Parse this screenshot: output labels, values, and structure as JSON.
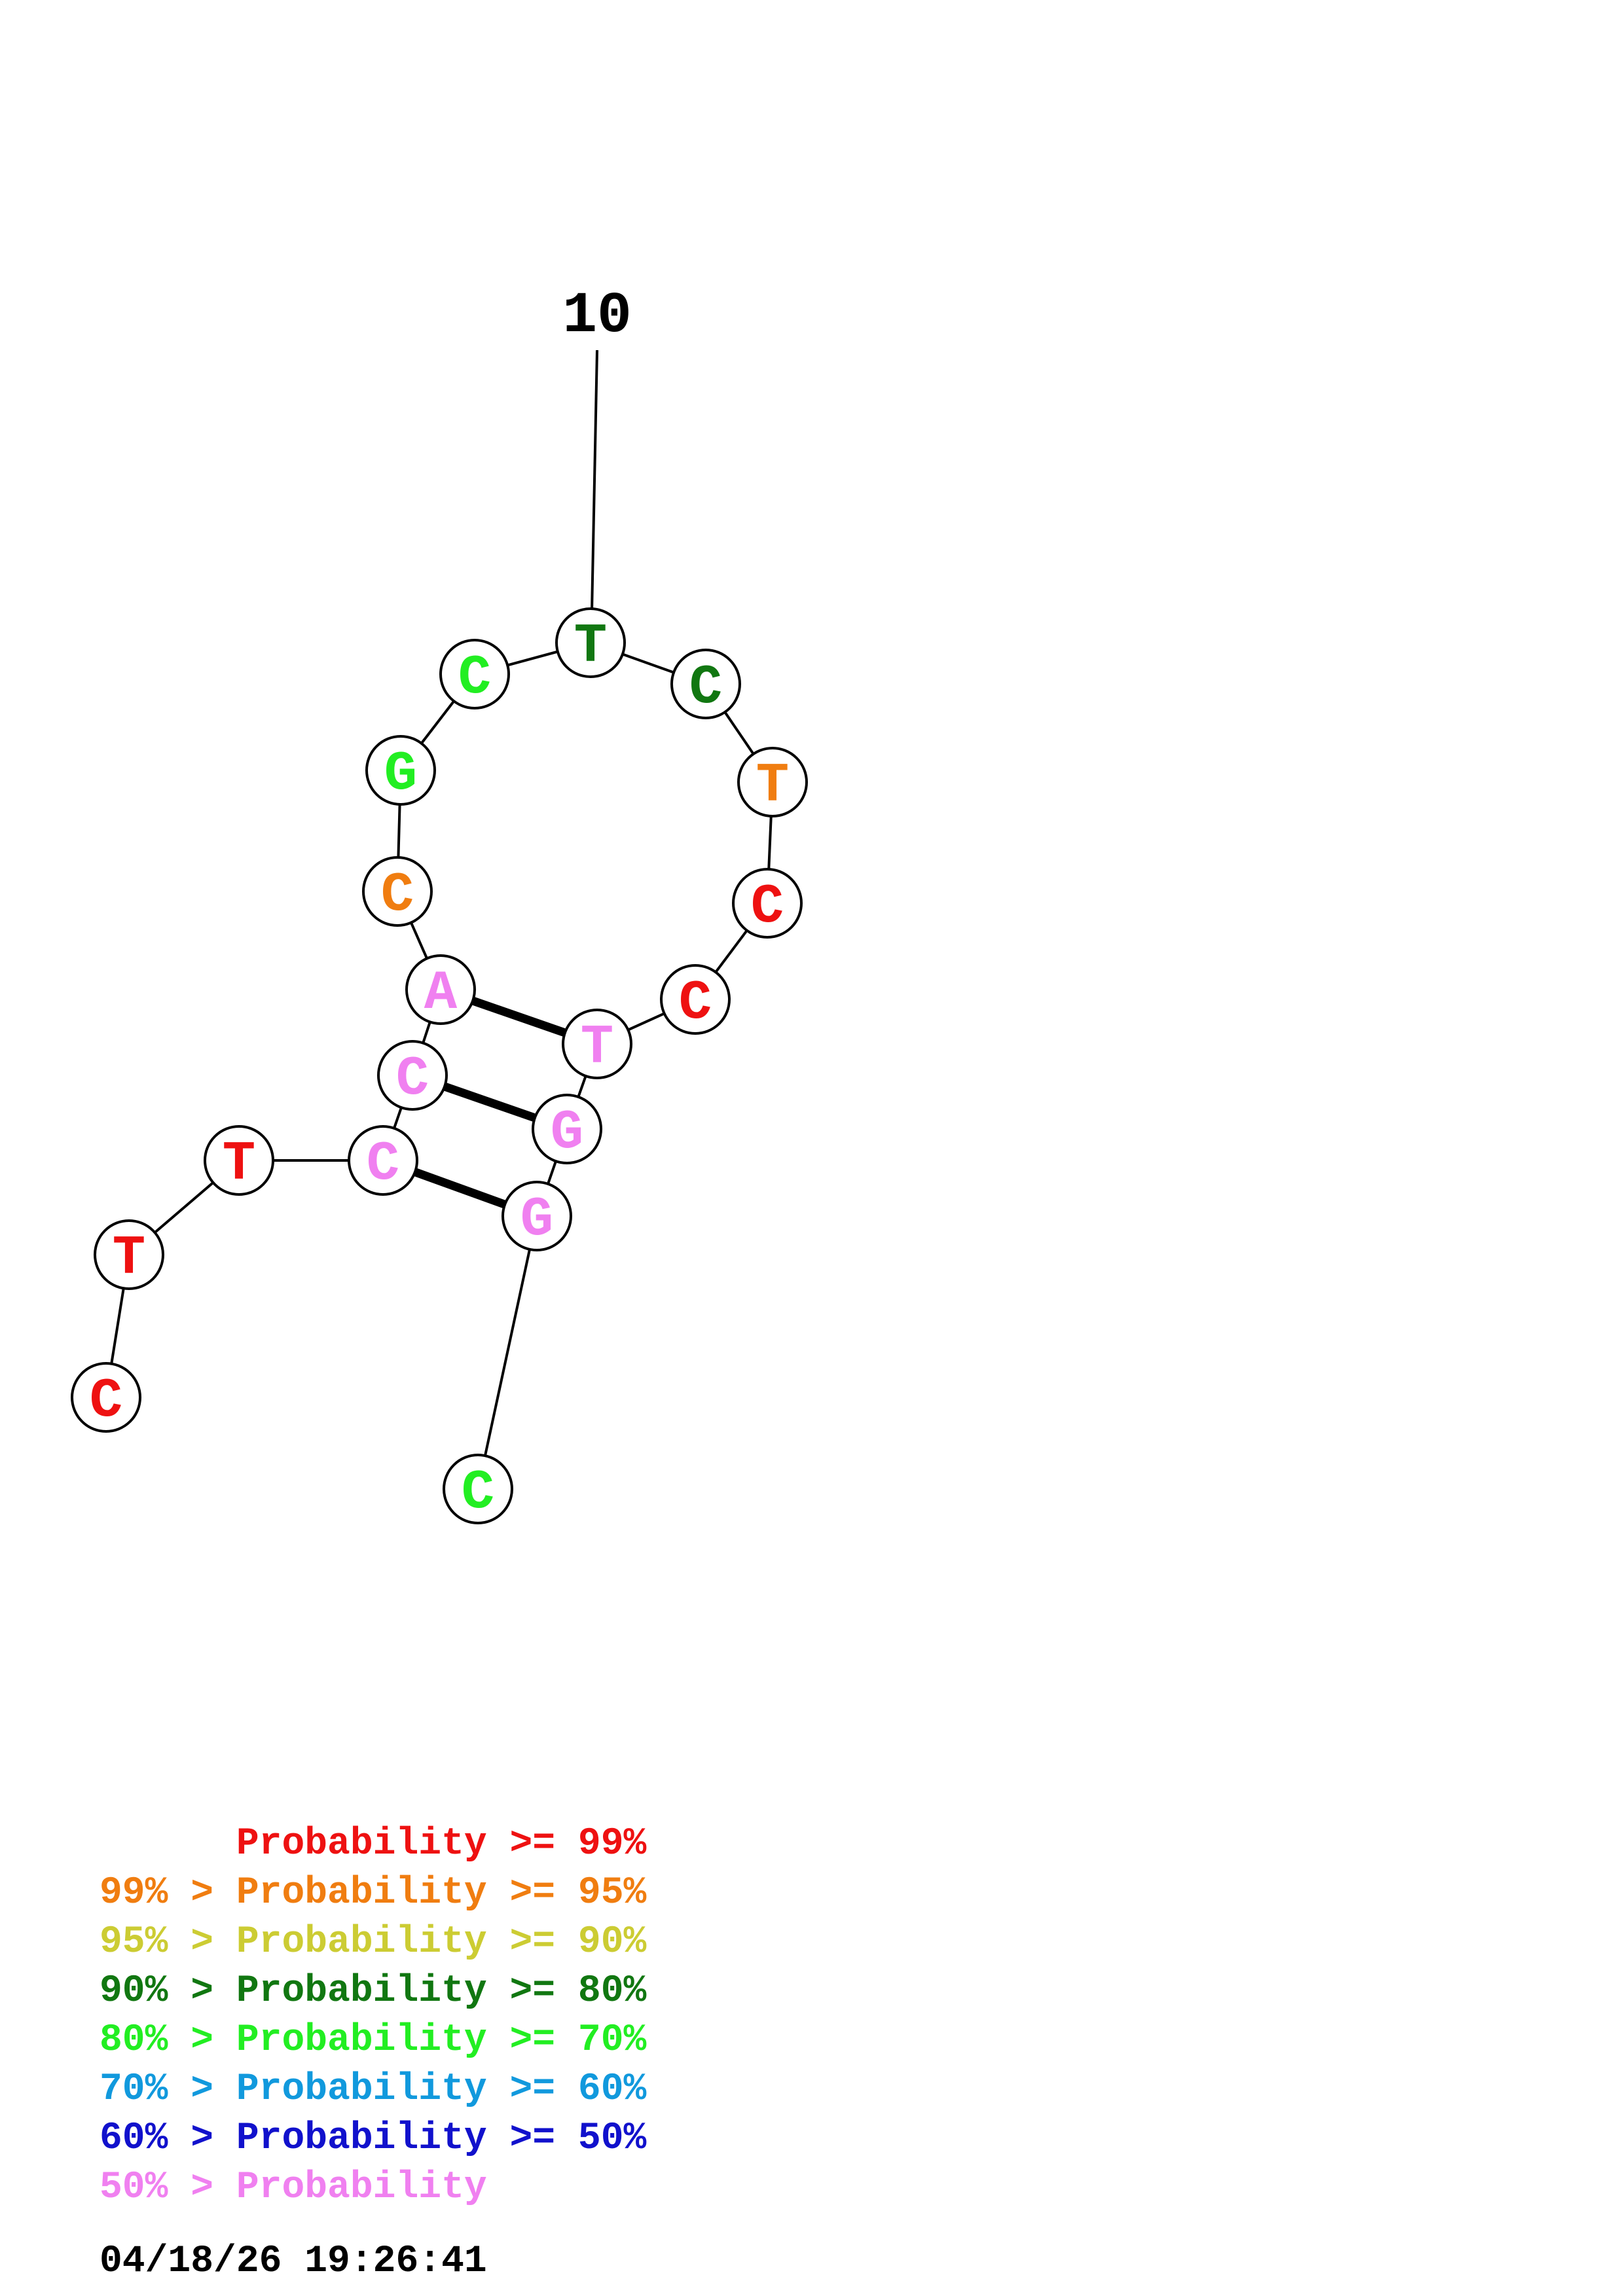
{
  "colors": {
    "p99": "#ee1111",
    "p95": "#f07d10",
    "p90": "#cccc33",
    "p80": "#117711",
    "p70": "#22ee22",
    "p60": "#1199dd",
    "p50": "#1111cc",
    "plow": "#f080f0"
  },
  "diagram": {
    "position_label": "10",
    "nucleotides": [
      {
        "index": 1,
        "base": "C",
        "color": "#ee1111"
      },
      {
        "index": 2,
        "base": "T",
        "color": "#ee1111"
      },
      {
        "index": 3,
        "base": "T",
        "color": "#ee1111"
      },
      {
        "index": 4,
        "base": "C",
        "color": "#f080f0"
      },
      {
        "index": 5,
        "base": "C",
        "color": "#f080f0"
      },
      {
        "index": 6,
        "base": "A",
        "color": "#f080f0"
      },
      {
        "index": 7,
        "base": "C",
        "color": "#f07d10"
      },
      {
        "index": 8,
        "base": "G",
        "color": "#22ee22"
      },
      {
        "index": 9,
        "base": "C",
        "color": "#22ee22"
      },
      {
        "index": 10,
        "base": "T",
        "color": "#117711"
      },
      {
        "index": 11,
        "base": "C",
        "color": "#117711"
      },
      {
        "index": 12,
        "base": "T",
        "color": "#f07d10"
      },
      {
        "index": 13,
        "base": "C",
        "color": "#ee1111"
      },
      {
        "index": 14,
        "base": "C",
        "color": "#ee1111"
      },
      {
        "index": 15,
        "base": "T",
        "color": "#f080f0"
      },
      {
        "index": 16,
        "base": "G",
        "color": "#f080f0"
      },
      {
        "index": 17,
        "base": "G",
        "color": "#f080f0"
      },
      {
        "index": 18,
        "base": "C",
        "color": "#22ee22"
      }
    ],
    "base_pairs": [
      [
        4,
        17
      ],
      [
        5,
        16
      ],
      [
        6,
        15
      ]
    ]
  },
  "legend": {
    "lines": [
      {
        "text": "      Probability >= 99%",
        "color": "#ee1111"
      },
      {
        "text": "99% > Probability >= 95%",
        "color": "#f07d10"
      },
      {
        "text": "95% > Probability >= 90%",
        "color": "#cccc33"
      },
      {
        "text": "90% > Probability >= 80%",
        "color": "#117711"
      },
      {
        "text": "80% > Probability >= 70%",
        "color": "#22ee22"
      },
      {
        "text": "70% > Probability >= 60%",
        "color": "#1199dd"
      },
      {
        "text": "60% > Probability >= 50%",
        "color": "#1111cc"
      },
      {
        "text": "50% > Probability",
        "color": "#f080f0"
      }
    ],
    "timestamp": "04/18/26 19:26:41"
  }
}
